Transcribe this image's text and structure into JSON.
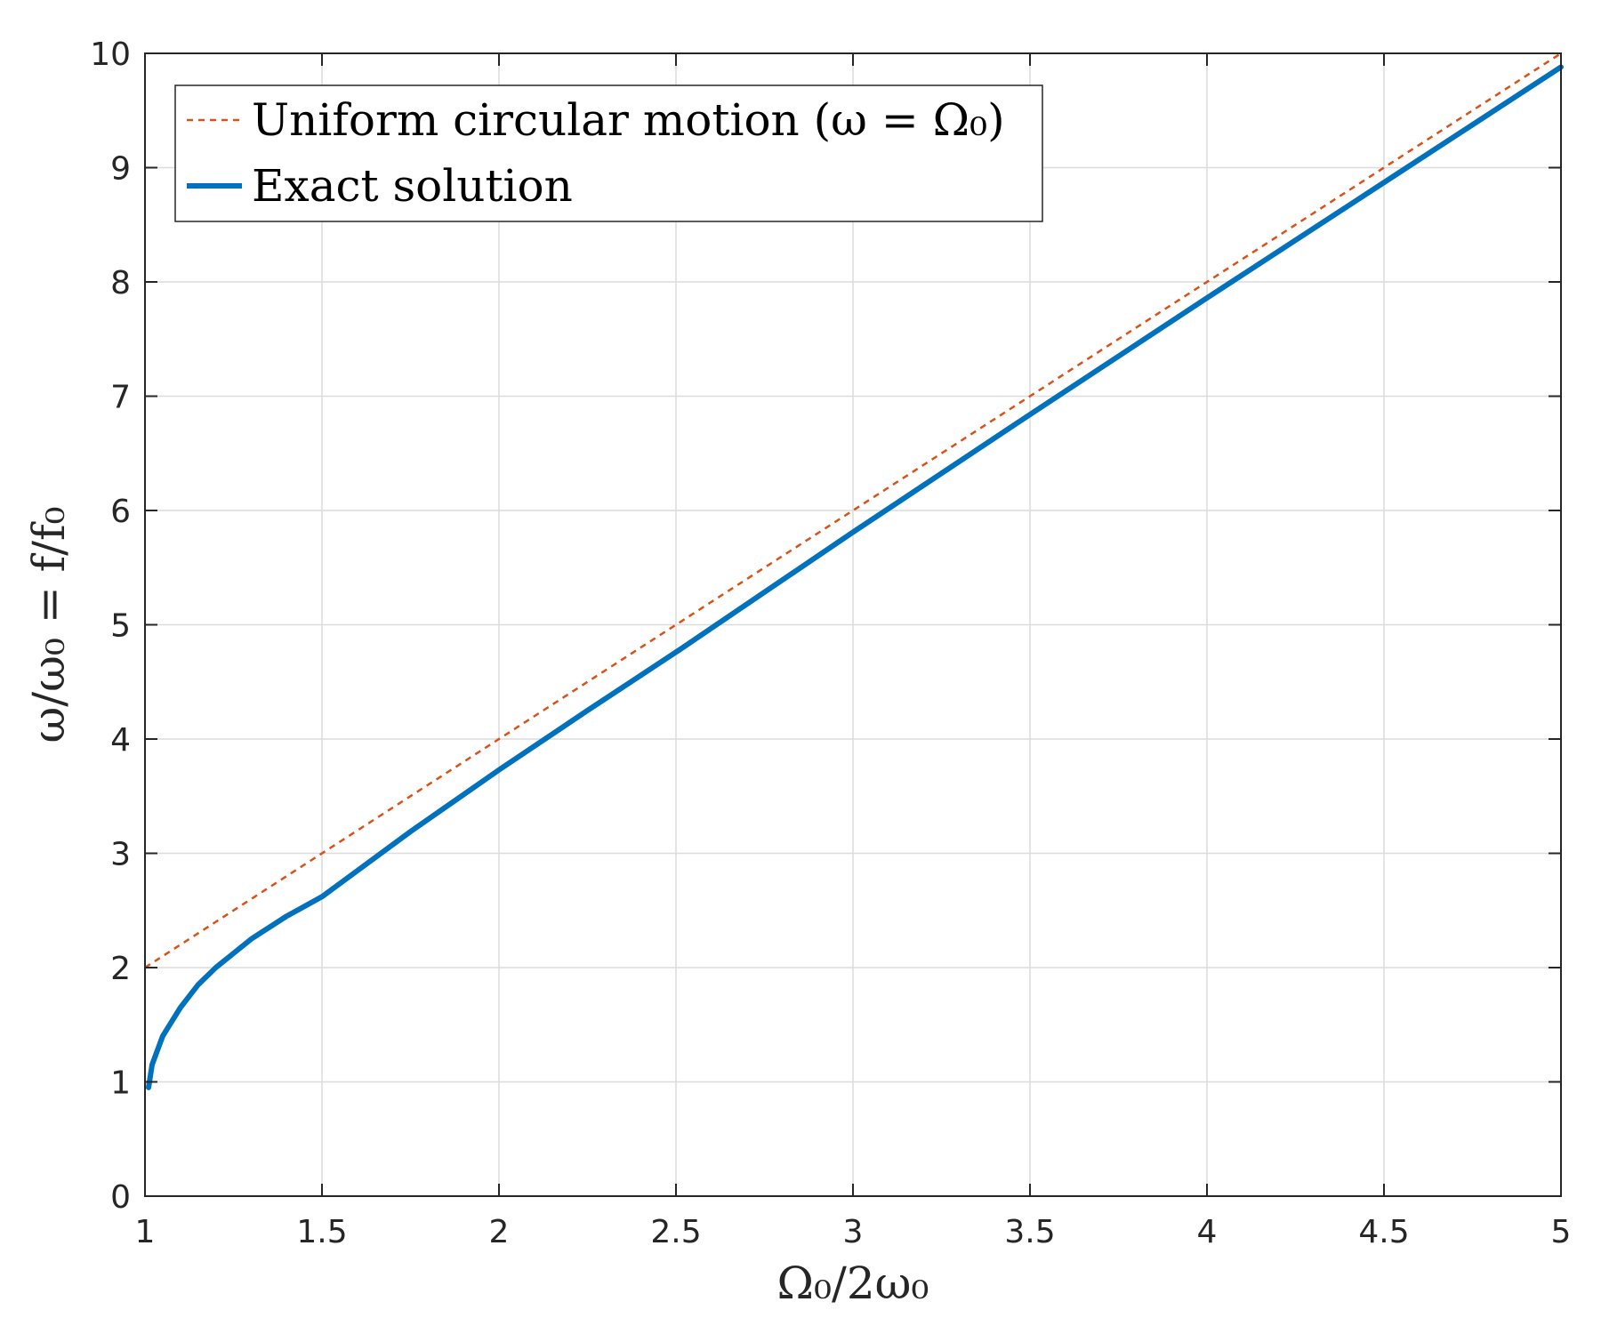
{
  "chart_data": {
    "type": "line",
    "xlabel": "Ω₀/2ω₀",
    "ylabel": "ω/ω₀ = f/f₀",
    "xlim": [
      1,
      5
    ],
    "ylim": [
      0,
      10
    ],
    "xticks": [
      "1",
      "1.5",
      "2",
      "2.5",
      "3",
      "3.5",
      "4",
      "4.5",
      "5"
    ],
    "yticks": [
      "0",
      "1",
      "2",
      "3",
      "4",
      "5",
      "6",
      "7",
      "8",
      "9",
      "10"
    ],
    "grid": true,
    "legend_position": "top-left",
    "series": [
      {
        "name": "Uniform circular motion (ω = Ω₀)",
        "style": "dashed",
        "color": "#D95319",
        "x": [
          1,
          5
        ],
        "y": [
          2,
          10
        ]
      },
      {
        "name": "Exact solution",
        "style": "solid",
        "color": "#0072BD",
        "x": [
          1.01,
          1.02,
          1.05,
          1.1,
          1.15,
          1.2,
          1.3,
          1.4,
          1.5,
          1.75,
          2,
          2.25,
          2.5,
          3,
          3.5,
          4,
          4.5,
          5
        ],
        "y": [
          0.95,
          1.15,
          1.4,
          1.65,
          1.85,
          2.0,
          2.25,
          2.45,
          2.62,
          3.19,
          3.73,
          4.25,
          4.76,
          5.81,
          6.84,
          7.86,
          8.87,
          9.88
        ]
      }
    ]
  }
}
